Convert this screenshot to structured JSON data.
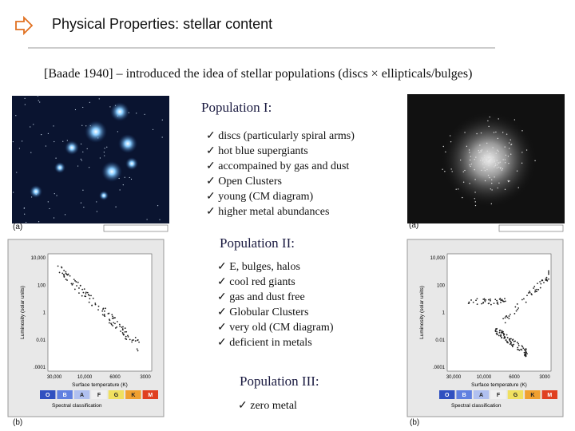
{
  "header": {
    "title": "Physical Properties: stellar content",
    "subtitle": "[Baade 1940] – introduced the idea of stellar populations (discs × ellipticals/bulges)"
  },
  "populations": [
    {
      "heading": "Population I:",
      "items": [
        "discs (particularly spiral arms)",
        "hot blue supergiants",
        "accompained by gas and dust",
        "Open Clusters",
        "young (CM diagram)",
        "higher metal abundances"
      ]
    },
    {
      "heading": "Population II:",
      "items": [
        "E, bulges, halos",
        "cool red giants",
        "gas and dust free",
        "Globular Clusters",
        "very old (CM diagram)",
        "deficient in metals"
      ]
    },
    {
      "heading": "Population III:",
      "items": [
        "zero metal"
      ]
    }
  ],
  "figures": {
    "top_left": "(a)",
    "top_right": "(a)",
    "bottom_left": "(b)",
    "bottom_right": "(b)"
  },
  "hr_diagram": {
    "y_label": "Luminosity (solar units)",
    "y_ticks": [
      "10,000",
      "100",
      "1",
      "0.01",
      ".0001"
    ],
    "x_ticks": [
      "30,000",
      "10,000",
      "6000",
      "3000"
    ],
    "x_label": "Surface temperature (K)",
    "spectral_classes": [
      "O",
      "B",
      "A",
      "F",
      "G",
      "K",
      "M"
    ],
    "spectral_label": "Spectral classification"
  }
}
